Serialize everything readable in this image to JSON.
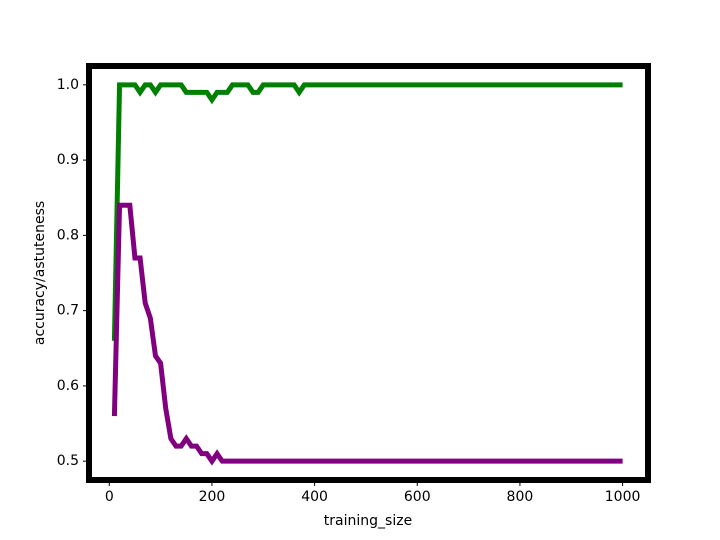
{
  "chart_data": {
    "type": "line",
    "x_label": "training_size",
    "y_label": "accuracy/astuteness",
    "xlim": [
      -39.5,
      1049.5
    ],
    "ylim": [
      0.475,
      1.025
    ],
    "xticks": [
      0,
      200,
      400,
      600,
      800,
      1000
    ],
    "yticks": [
      0.5,
      0.6,
      0.7,
      0.8,
      0.9,
      {
        "value": 1,
        "label": "1.0"
      }
    ],
    "x": [
      10,
      20,
      30,
      40,
      50,
      60,
      70,
      80,
      90,
      100,
      110,
      120,
      130,
      140,
      150,
      160,
      170,
      180,
      190,
      200,
      210,
      220,
      230,
      240,
      250,
      260,
      270,
      280,
      290,
      300,
      310,
      320,
      330,
      340,
      350,
      360,
      370,
      380,
      390,
      400,
      410,
      420,
      430,
      440,
      450,
      460,
      470,
      480,
      490,
      500,
      510,
      520,
      530,
      540,
      550,
      560,
      570,
      580,
      590,
      600,
      610,
      620,
      630,
      640,
      650,
      660,
      670,
      680,
      690,
      700,
      710,
      720,
      730,
      740,
      750,
      760,
      770,
      780,
      790,
      800,
      810,
      820,
      830,
      840,
      850,
      860,
      870,
      880,
      890,
      900,
      910,
      920,
      930,
      940,
      950,
      960,
      970,
      980,
      990,
      1000
    ],
    "series": [
      {
        "color": "#008000",
        "values": [
          0.66,
          1,
          1,
          1,
          1,
          0.99,
          1,
          1,
          0.99,
          1,
          1,
          1,
          1,
          1,
          0.99,
          0.99,
          0.99,
          0.99,
          0.99,
          0.98,
          0.99,
          0.99,
          0.99,
          1,
          1,
          1,
          1,
          0.99,
          0.99,
          1,
          1,
          1,
          1,
          1,
          1,
          1,
          0.99,
          1,
          1,
          1,
          1,
          1,
          1,
          1,
          1,
          1,
          1,
          1,
          1,
          1,
          1,
          1,
          1,
          1,
          1,
          1,
          1,
          1,
          1,
          1,
          1,
          1,
          1,
          1,
          1,
          1,
          1,
          1,
          1,
          1,
          1,
          1,
          1,
          1,
          1,
          1,
          1,
          1,
          1,
          1,
          1,
          1,
          1,
          1,
          1,
          1,
          1,
          1,
          1,
          1,
          1,
          1,
          1,
          1,
          1,
          1,
          1,
          1,
          1,
          1
        ]
      },
      {
        "color": "#800080",
        "values": [
          0.56,
          0.84,
          0.84,
          0.84,
          0.77,
          0.77,
          0.71,
          0.69,
          0.64,
          0.63,
          0.57,
          0.53,
          0.52,
          0.52,
          0.53,
          0.52,
          0.52,
          0.51,
          0.51,
          0.5,
          0.51,
          0.5,
          0.5,
          0.5,
          0.5,
          0.5,
          0.5,
          0.5,
          0.5,
          0.5,
          0.5,
          0.5,
          0.5,
          0.5,
          0.5,
          0.5,
          0.5,
          0.5,
          0.5,
          0.5,
          0.5,
          0.5,
          0.5,
          0.5,
          0.5,
          0.5,
          0.5,
          0.5,
          0.5,
          0.5,
          0.5,
          0.5,
          0.5,
          0.5,
          0.5,
          0.5,
          0.5,
          0.5,
          0.5,
          0.5,
          0.5,
          0.5,
          0.5,
          0.5,
          0.5,
          0.5,
          0.5,
          0.5,
          0.5,
          0.5,
          0.5,
          0.5,
          0.5,
          0.5,
          0.5,
          0.5,
          0.5,
          0.5,
          0.5,
          0.5,
          0.5,
          0.5,
          0.5,
          0.5,
          0.5,
          0.5,
          0.5,
          0.5,
          0.5,
          0.5,
          0.5,
          0.5,
          0.5,
          0.5,
          0.5,
          0.5,
          0.5,
          0.5,
          0.5,
          0.5
        ]
      }
    ]
  }
}
